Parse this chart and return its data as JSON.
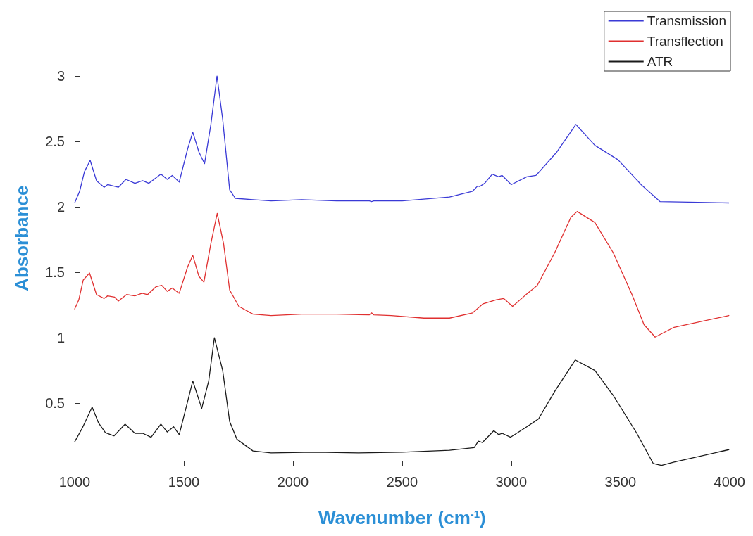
{
  "chart_data": {
    "type": "line",
    "xlabel": "Wavenumber (cm$^{-1}$)",
    "ylabel": "Absorbance",
    "xlim": [
      1000,
      4000
    ],
    "xticks": [
      1000,
      1500,
      2000,
      2500,
      3000,
      3500,
      4000
    ],
    "ylim": [
      0.02,
      3.5
    ],
    "yticks": [
      0.5,
      1,
      1.5,
      2,
      2.5,
      3
    ],
    "grid": false,
    "legend": "top right",
    "marker": "none",
    "line_style": "solid",
    "series": [
      {
        "name": "Transmission",
        "color": "#3a3ad6",
        "x": [
          1000,
          1023,
          1045,
          1071,
          1100,
          1135,
          1151,
          1200,
          1235,
          1276,
          1311,
          1340,
          1395,
          1424,
          1447,
          1479,
          1517,
          1541,
          1569,
          1595,
          1624,
          1652,
          1678,
          1710,
          1736,
          1817,
          1900,
          2040,
          2200,
          2350,
          2360,
          2370,
          2500,
          2717,
          2823,
          2846,
          2855,
          2878,
          2913,
          2942,
          2958,
          3000,
          3071,
          3113,
          3209,
          3296,
          3383,
          3489,
          3595,
          3682,
          3997
        ],
        "values": [
          2.03,
          2.12,
          2.27,
          2.355,
          2.2,
          2.15,
          2.17,
          2.15,
          2.21,
          2.18,
          2.2,
          2.18,
          2.25,
          2.21,
          2.24,
          2.19,
          2.44,
          2.57,
          2.42,
          2.33,
          2.63,
          3.0,
          2.67,
          2.13,
          2.065,
          2.055,
          2.045,
          2.055,
          2.045,
          2.045,
          2.04,
          2.045,
          2.045,
          2.075,
          2.12,
          2.16,
          2.155,
          2.18,
          2.25,
          2.23,
          2.24,
          2.17,
          2.23,
          2.24,
          2.42,
          2.63,
          2.47,
          2.36,
          2.17,
          2.04,
          2.03
        ]
      },
      {
        "name": "Transflection",
        "color": "#e03030",
        "x": [
          1000,
          1019,
          1039,
          1068,
          1100,
          1135,
          1151,
          1183,
          1200,
          1238,
          1276,
          1309,
          1334,
          1373,
          1399,
          1424,
          1447,
          1479,
          1517,
          1541,
          1569,
          1592,
          1624,
          1653,
          1682,
          1710,
          1752,
          1817,
          1900,
          2040,
          2200,
          2350,
          2360,
          2370,
          2450,
          2600,
          2717,
          2823,
          2871,
          2932,
          2965,
          3006,
          3061,
          3119,
          3199,
          3273,
          3302,
          3383,
          3467,
          3553,
          3608,
          3659,
          3746,
          3997
        ],
        "values": [
          1.22,
          1.29,
          1.44,
          1.495,
          1.33,
          1.3,
          1.32,
          1.31,
          1.28,
          1.33,
          1.32,
          1.34,
          1.33,
          1.39,
          1.4,
          1.355,
          1.38,
          1.34,
          1.54,
          1.63,
          1.47,
          1.425,
          1.72,
          1.95,
          1.72,
          1.365,
          1.24,
          1.18,
          1.17,
          1.18,
          1.18,
          1.175,
          1.19,
          1.175,
          1.17,
          1.15,
          1.15,
          1.19,
          1.26,
          1.29,
          1.3,
          1.24,
          1.32,
          1.4,
          1.65,
          1.92,
          1.965,
          1.88,
          1.65,
          1.33,
          1.1,
          1.005,
          1.08,
          1.17
        ]
      },
      {
        "name": "ATR",
        "color": "#1a1a1a",
        "x": [
          1000,
          1035,
          1080,
          1109,
          1141,
          1180,
          1231,
          1276,
          1312,
          1350,
          1395,
          1424,
          1453,
          1479,
          1517,
          1541,
          1582,
          1614,
          1640,
          1678,
          1710,
          1743,
          1817,
          1900,
          2100,
          2300,
          2500,
          2717,
          2830,
          2849,
          2868,
          2920,
          2942,
          2958,
          2997,
          3071,
          3125,
          3199,
          3293,
          3383,
          3467,
          3575,
          3650,
          3688,
          3746,
          3997
        ],
        "values": [
          0.205,
          0.31,
          0.47,
          0.35,
          0.275,
          0.25,
          0.34,
          0.27,
          0.27,
          0.24,
          0.34,
          0.28,
          0.32,
          0.26,
          0.51,
          0.67,
          0.46,
          0.67,
          1.0,
          0.75,
          0.36,
          0.225,
          0.135,
          0.12,
          0.125,
          0.12,
          0.125,
          0.14,
          0.16,
          0.21,
          0.2,
          0.29,
          0.26,
          0.27,
          0.24,
          0.32,
          0.38,
          0.59,
          0.83,
          0.75,
          0.56,
          0.27,
          0.04,
          0.025,
          0.05,
          0.145
        ]
      }
    ]
  }
}
